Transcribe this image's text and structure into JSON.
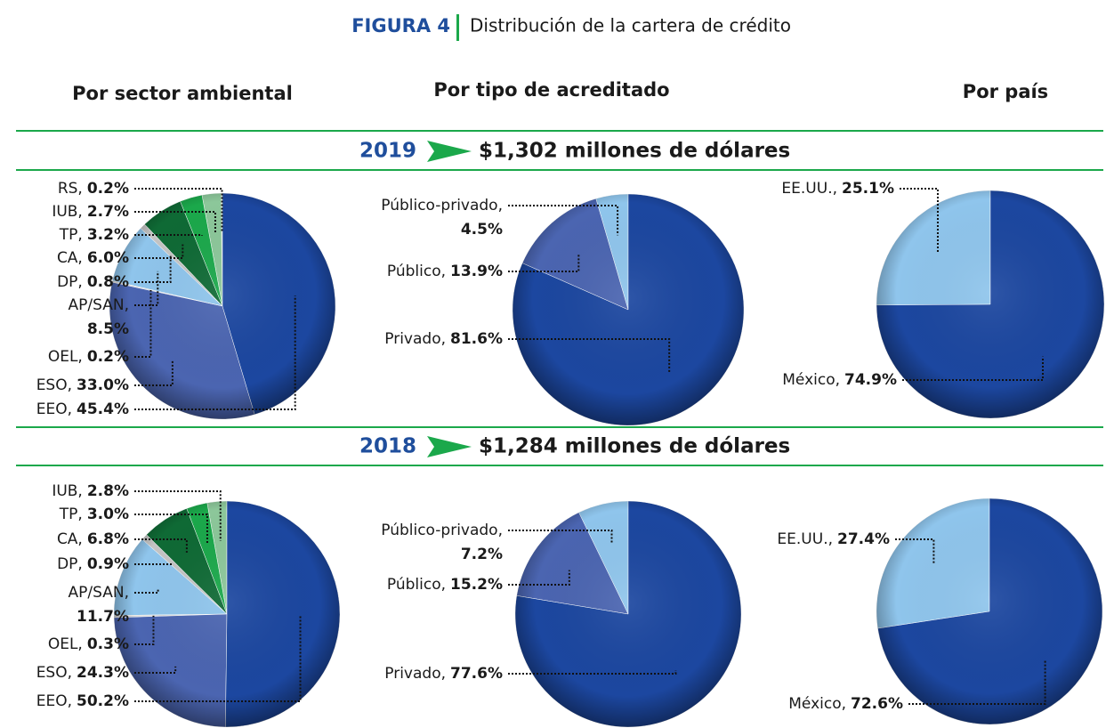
{
  "figure": {
    "label": "FIGURA 4",
    "title": "Distribución de la cartera de crédito"
  },
  "columns": [
    "Por sector ambiental",
    "Por tipo de acreditado",
    "Por país"
  ],
  "rows": [
    {
      "year": "2019",
      "amount": "$1,302 millones de dólares"
    },
    {
      "year": "2018",
      "amount": "$1,284 millones de dólares"
    }
  ],
  "chart_data": [
    {
      "type": "pie",
      "categories": [
        "RS,",
        "IUB,",
        "TP,",
        "CA,",
        "DP,",
        "AP/SAN,",
        "OEL,",
        "ESO,",
        "EEO,"
      ],
      "values": [
        0.2,
        2.7,
        3.2,
        6.0,
        0.8,
        8.5,
        0.2,
        33.0,
        45.4
      ],
      "value_labels": [
        "0.2%",
        "2.7%",
        "3.2%",
        "6.0%",
        "0.8%",
        "8.5%",
        "0.2%",
        "33.0%",
        "45.4%"
      ],
      "colors": [
        "#b5d9bc",
        "#8cc79a",
        "#1ba84b",
        "#0f6a35",
        "#c4c4c4",
        "#8fc5ec",
        "#d4d4d4",
        "#4b65b1",
        "#1c47a0"
      ]
    },
    {
      "type": "pie",
      "categories": [
        "Público-privado,",
        "Público,",
        "Privado,"
      ],
      "values": [
        4.5,
        13.9,
        81.6
      ],
      "value_labels": [
        "4.5%",
        "13.9%",
        "81.6%"
      ],
      "colors": [
        "#8fc5ec",
        "#4b65b1",
        "#1c47a0"
      ]
    },
    {
      "type": "pie",
      "categories": [
        "EE.UU.,",
        "México,"
      ],
      "values": [
        25.1,
        74.9
      ],
      "value_labels": [
        "25.1%",
        "74.9%"
      ],
      "colors": [
        "#8fc5ec",
        "#1c47a0"
      ]
    },
    {
      "type": "pie",
      "categories": [
        "IUB,",
        "TP,",
        "CA,",
        "DP,",
        "AP/SAN,",
        "OEL,",
        "ESO,",
        "EEO,"
      ],
      "values": [
        2.8,
        3.0,
        6.8,
        0.9,
        11.7,
        0.3,
        24.3,
        50.2
      ],
      "value_labels": [
        "2.8%",
        "3.0%",
        "6.8%",
        "0.9%",
        "11.7%",
        "0.3%",
        "24.3%",
        "50.2%"
      ],
      "colors": [
        "#8cc79a",
        "#1ba84b",
        "#0f6a35",
        "#c4c4c4",
        "#8fc5ec",
        "#d4d4d4",
        "#4b65b1",
        "#1c47a0"
      ]
    },
    {
      "type": "pie",
      "categories": [
        "Público-privado,",
        "Público,",
        "Privado,"
      ],
      "values": [
        7.2,
        15.2,
        77.6
      ],
      "value_labels": [
        "7.2%",
        "15.2%",
        "77.6%"
      ],
      "colors": [
        "#8fc5ec",
        "#4b65b1",
        "#1c47a0"
      ]
    },
    {
      "type": "pie",
      "categories": [
        "EE.UU.,",
        "México,"
      ],
      "values": [
        27.4,
        72.6
      ],
      "value_labels": [
        "27.4%",
        "72.6%"
      ],
      "colors": [
        "#8fc5ec",
        "#1c47a0"
      ]
    }
  ]
}
